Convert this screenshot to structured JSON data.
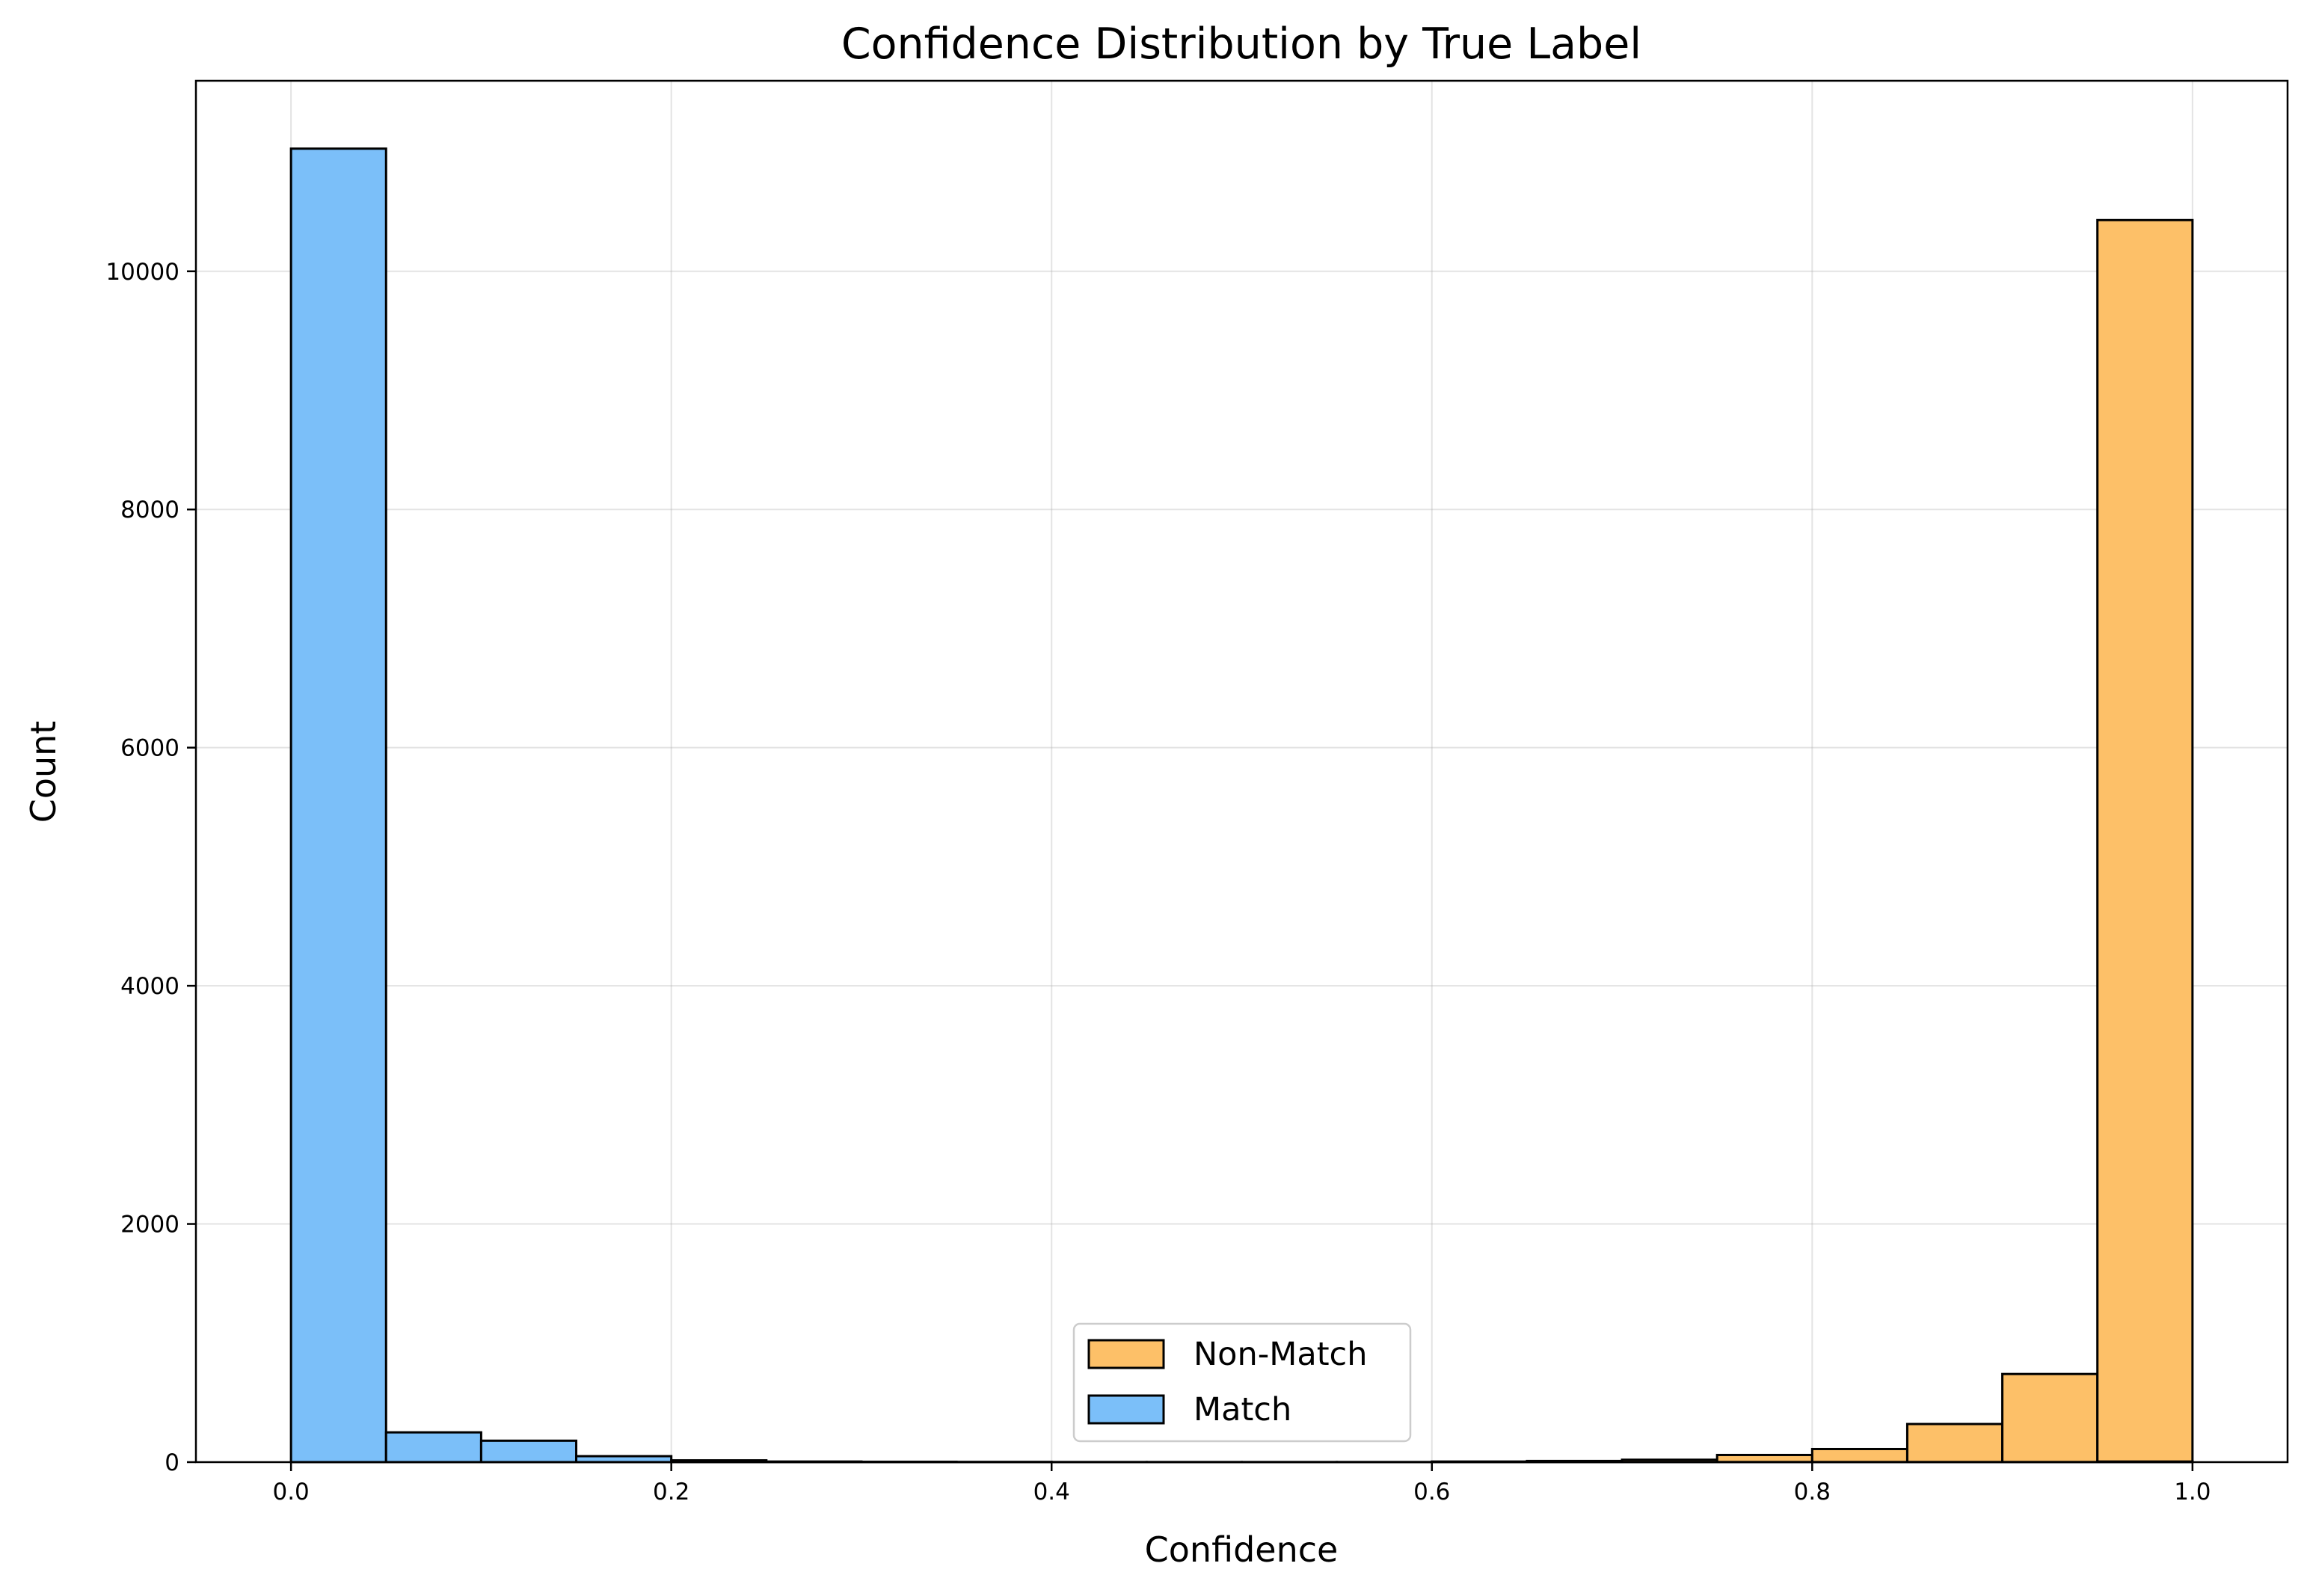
{
  "chart_data": {
    "type": "bar",
    "title": "Confidence Distribution by True Label",
    "xlabel": "Confidence",
    "ylabel": "Count",
    "xlim": [
      -0.05,
      1.05
    ],
    "ylim": [
      0,
      11600
    ],
    "xticks": [
      0.0,
      0.2,
      0.4,
      0.6,
      0.8,
      1.0
    ],
    "xtick_labels": [
      "0.0",
      "0.2",
      "0.4",
      "0.6",
      "0.8",
      "1.0"
    ],
    "yticks": [
      0,
      2000,
      4000,
      6000,
      8000,
      10000
    ],
    "ytick_labels": [
      "0",
      "2000",
      "4000",
      "6000",
      "8000",
      "10000"
    ],
    "grid": true,
    "legend_position": "lower center",
    "bin_edges": [
      0.0,
      0.05,
      0.1,
      0.15,
      0.2,
      0.25,
      0.3,
      0.35,
      0.4,
      0.45,
      0.5,
      0.55,
      0.6,
      0.65,
      0.7,
      0.75,
      0.8,
      0.85,
      0.9,
      0.95,
      1.0
    ],
    "series": [
      {
        "name": "Non-Match",
        "color": "#fdc068",
        "values": [
          0,
          0,
          0,
          0,
          0,
          0,
          0,
          0,
          0,
          0,
          0,
          0,
          5,
          10,
          20,
          60,
          110,
          320,
          740,
          10430
        ]
      },
      {
        "name": "Match",
        "color": "#7bbff9",
        "values": [
          11030,
          250,
          180,
          50,
          15,
          5,
          3,
          2,
          1,
          1,
          1,
          1,
          1,
          1,
          1,
          1,
          1,
          1,
          1,
          5
        ]
      }
    ]
  }
}
